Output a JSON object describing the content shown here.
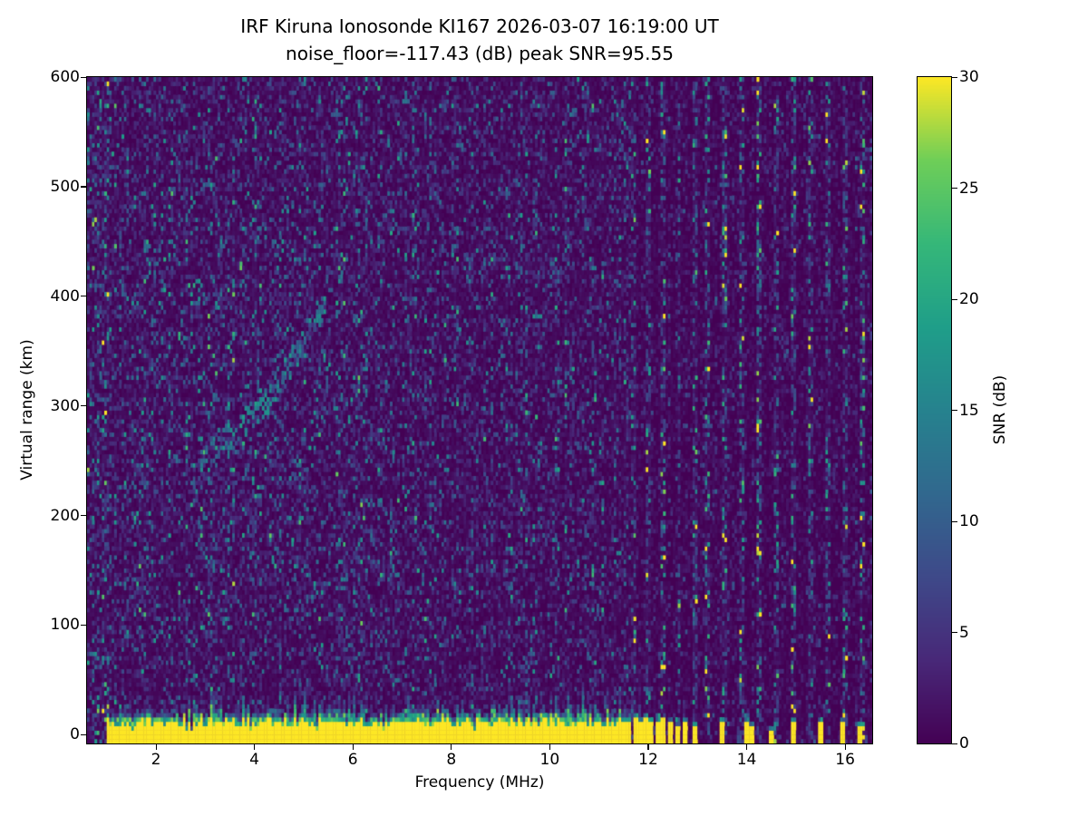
{
  "chart_data": {
    "type": "heatmap",
    "title": "IRF Kiruna Ionosonde KI167 2026-03-07 16:19:00  UT",
    "subtitle": "noise_floor=-117.43 (dB) peak SNR=95.55",
    "xlabel": "Frequency (MHz)",
    "ylabel": "Virtual range (km)",
    "xlim": [
      0.6,
      16.55
    ],
    "ylim": [
      -8,
      600
    ],
    "x_ticks": [
      2,
      4,
      6,
      8,
      10,
      12,
      14,
      16
    ],
    "y_ticks": [
      0,
      100,
      200,
      300,
      400,
      500,
      600
    ],
    "grid": false,
    "colormap_background_hex": "#440154",
    "peak_color_hex": "#fde725",
    "stats": {
      "noise_floor_db": -117.43,
      "peak_snr_db": 95.55
    },
    "colorbar": {
      "label": "SNR (dB)",
      "ticks": [
        0,
        5,
        10,
        15,
        20,
        25,
        30
      ],
      "range": [
        0,
        30
      ],
      "colormap": "viridis",
      "position": "right"
    },
    "ground_band": {
      "freq_range": [
        0.98,
        11.67
      ],
      "top_km_mean": 11,
      "top_km_jitter": 8,
      "value_db": 30
    },
    "echo_trace": {
      "points": [
        [
          2.85,
          252
        ],
        [
          3.05,
          257
        ],
        [
          3.25,
          263
        ],
        [
          3.45,
          270
        ],
        [
          3.65,
          278
        ],
        [
          3.85,
          287
        ],
        [
          4.05,
          297
        ],
        [
          4.25,
          308
        ],
        [
          4.45,
          320
        ],
        [
          4.65,
          333
        ],
        [
          4.85,
          347
        ],
        [
          5.05,
          362
        ],
        [
          5.25,
          378
        ],
        [
          5.42,
          392
        ]
      ],
      "value_db_range": [
        6,
        20
      ]
    },
    "rfi_bars": [
      [
        11.73,
        16
      ],
      [
        11.84,
        13
      ],
      [
        11.95,
        15
      ],
      [
        12.07,
        12
      ],
      [
        12.19,
        14
      ],
      [
        12.32,
        11
      ],
      [
        12.46,
        13
      ],
      [
        12.6,
        10
      ],
      [
        12.76,
        12
      ],
      [
        12.95,
        9
      ],
      [
        13.5,
        11
      ],
      [
        14.02,
        14
      ],
      [
        14.12,
        8
      ],
      [
        14.5,
        5
      ],
      [
        14.97,
        12
      ],
      [
        15.52,
        11
      ],
      [
        15.97,
        13
      ],
      [
        16.3,
        9
      ]
    ],
    "rfi_stripes": [
      11.72,
      12.0,
      12.3,
      12.62,
      12.95,
      13.2,
      13.55,
      13.9,
      14.25,
      14.6,
      14.95,
      15.3,
      15.65,
      16.0,
      16.35
    ],
    "noise": {
      "seed": 20260307,
      "base_db": 1,
      "speckle_db_max": 16
    }
  }
}
